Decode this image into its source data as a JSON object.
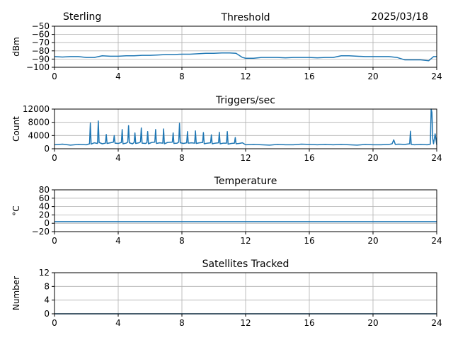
{
  "header": {
    "station": "Sterling",
    "date": "2025/03/18"
  },
  "colors": {
    "series": "#1f77b4",
    "grid": "#b0b0b0",
    "axis": "#000000"
  },
  "chart_data": [
    {
      "type": "line",
      "title": "Threshold",
      "xlabel": "",
      "ylabel": "dBm",
      "xlim": [
        0,
        24
      ],
      "ylim": [
        -100,
        -50
      ],
      "xticks": [
        0,
        4,
        8,
        12,
        16,
        20,
        24
      ],
      "yticks": [
        -100,
        -90,
        -80,
        -70,
        -60,
        -50
      ],
      "ytick_labels": [
        "−100",
        "−90",
        "−80",
        "−70",
        "−60",
        "−50"
      ],
      "grid": true,
      "series": [
        {
          "x": [
            0,
            0.5,
            1,
            1.5,
            2,
            2.5,
            3,
            3.5,
            4,
            4.5,
            5,
            5.5,
            6,
            6.5,
            7,
            7.5,
            8,
            8.5,
            9,
            9.5,
            10,
            10.5,
            11,
            11.4,
            11.8,
            12,
            12.5,
            13,
            13.5,
            14,
            14.5,
            15,
            15.5,
            16,
            16.5,
            17,
            17.5,
            18,
            18.5,
            19,
            19.5,
            20,
            20.5,
            21,
            21.5,
            22,
            22.5,
            23,
            23.5,
            23.8,
            24
          ],
          "y": [
            -87,
            -87.5,
            -87,
            -87,
            -88,
            -88,
            -86,
            -86.5,
            -86.5,
            -86,
            -86,
            -85.5,
            -85.5,
            -85,
            -84.5,
            -84.5,
            -84,
            -84,
            -83.5,
            -83,
            -83,
            -82.5,
            -82.5,
            -83,
            -88,
            -89,
            -89,
            -88,
            -88,
            -88,
            -88.5,
            -88,
            -88,
            -88,
            -88.5,
            -88,
            -88,
            -86,
            -86,
            -86.5,
            -87,
            -87,
            -87,
            -87,
            -88,
            -91,
            -91,
            -91,
            -92,
            -87,
            -87
          ]
        }
      ]
    },
    {
      "type": "line",
      "title": "Triggers/sec",
      "xlabel": "",
      "ylabel": "Count",
      "xlim": [
        0,
        24
      ],
      "ylim": [
        0,
        12000
      ],
      "xticks": [
        0,
        4,
        8,
        12,
        16,
        20,
        24
      ],
      "yticks": [
        0,
        4000,
        8000,
        12000
      ],
      "grid": true,
      "series": [
        {
          "x": [
            0,
            0.5,
            1,
            1.5,
            2,
            2.2,
            2.25,
            2.3,
            2.5,
            2.7,
            2.75,
            2.8,
            3,
            3.2,
            3.25,
            3.3,
            3.5,
            3.7,
            3.75,
            3.8,
            4,
            4.2,
            4.25,
            4.3,
            4.5,
            4.6,
            4.65,
            4.7,
            4.9,
            5,
            5.05,
            5.1,
            5.3,
            5.4,
            5.45,
            5.5,
            5.7,
            5.8,
            5.85,
            5.9,
            6.1,
            6.3,
            6.35,
            6.4,
            6.6,
            6.8,
            6.85,
            6.9,
            7.1,
            7.4,
            7.45,
            7.5,
            7.7,
            7.8,
            7.85,
            7.9,
            8.1,
            8.3,
            8.35,
            8.4,
            8.6,
            8.8,
            8.85,
            8.9,
            9.1,
            9.3,
            9.35,
            9.4,
            9.6,
            9.8,
            9.85,
            9.9,
            10.1,
            10.3,
            10.35,
            10.4,
            10.6,
            10.8,
            10.85,
            10.9,
            11.1,
            11.3,
            11.35,
            11.4,
            11.6,
            11.8,
            12,
            12.5,
            13,
            13.5,
            14,
            14.5,
            15,
            15.5,
            16,
            16.5,
            17,
            17.5,
            18,
            18.5,
            19,
            19.5,
            20,
            20.5,
            21,
            21.2,
            21.3,
            21.4,
            21.6,
            22,
            22.3,
            22.35,
            22.4,
            22.6,
            23,
            23.4,
            23.6,
            23.65,
            23.7,
            23.75,
            23.8,
            23.9,
            24
          ],
          "y": [
            1200,
            1400,
            1100,
            1300,
            1200,
            1500,
            7800,
            1400,
            1800,
            1600,
            8400,
            1900,
            1500,
            1700,
            4300,
            1600,
            1800,
            2000,
            4000,
            1700,
            1600,
            1900,
            5800,
            1500,
            1700,
            2000,
            7000,
            1800,
            1500,
            1900,
            4800,
            1600,
            1800,
            2100,
            6300,
            1700,
            1600,
            1800,
            5200,
            1500,
            1900,
            2000,
            5800,
            1600,
            1800,
            1700,
            6000,
            1500,
            1900,
            2000,
            4800,
            1600,
            1700,
            2000,
            7700,
            1800,
            1600,
            1800,
            5200,
            1700,
            1800,
            1700,
            5400,
            1600,
            1800,
            1900,
            4900,
            1500,
            1700,
            1800,
            4200,
            1500,
            1700,
            1800,
            5000,
            1500,
            1700,
            1700,
            5200,
            1400,
            1600,
            1700,
            3400,
            1500,
            1600,
            1800,
            1200,
            1300,
            1200,
            1100,
            1300,
            1200,
            1200,
            1400,
            1300,
            1200,
            1300,
            1200,
            1300,
            1200,
            1100,
            1300,
            1200,
            1200,
            1300,
            1500,
            2700,
            1300,
            1400,
            1300,
            1500,
            5300,
            1300,
            1200,
            1300,
            1200,
            1400,
            12000,
            11000,
            3000,
            1500,
            4500,
            1200
          ]
        }
      ]
    },
    {
      "type": "line",
      "title": "Temperature",
      "xlabel": "",
      "ylabel": "°C",
      "xlim": [
        0,
        24
      ],
      "ylim": [
        -20,
        80
      ],
      "xticks": [
        0,
        4,
        8,
        12,
        16,
        20,
        24
      ],
      "yticks": [
        -20,
        0,
        20,
        40,
        60,
        80
      ],
      "ytick_labels": [
        "−20",
        "0",
        "20",
        "40",
        "60",
        "80"
      ],
      "grid": true,
      "series": [
        {
          "x": [
            0,
            24
          ],
          "y": [
            4,
            4
          ]
        }
      ]
    },
    {
      "type": "line",
      "title": "Satellites Tracked",
      "xlabel": "",
      "ylabel": "Number",
      "xlim": [
        0,
        24
      ],
      "ylim": [
        0,
        12
      ],
      "xticks": [
        0,
        4,
        8,
        12,
        16,
        20,
        24
      ],
      "yticks": [
        0,
        4,
        8,
        12
      ],
      "grid": true,
      "series": [
        {
          "x": [
            0,
            24
          ],
          "y": [
            0,
            0
          ]
        }
      ]
    }
  ]
}
